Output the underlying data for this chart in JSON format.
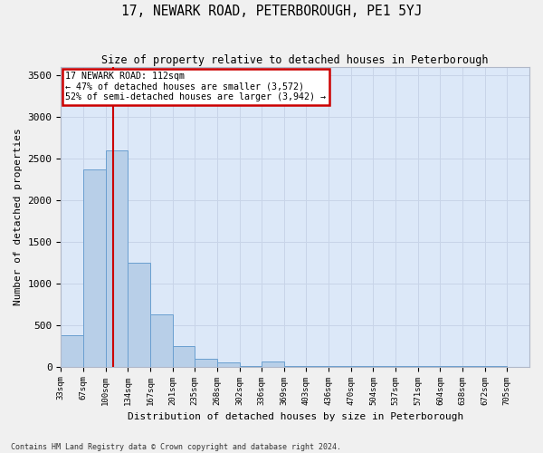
{
  "title": "17, NEWARK ROAD, PETERBOROUGH, PE1 5YJ",
  "subtitle": "Size of property relative to detached houses in Peterborough",
  "xlabel": "Distribution of detached houses by size in Peterborough",
  "ylabel": "Number of detached properties",
  "footnote1": "Contains HM Land Registry data © Crown copyright and database right 2024.",
  "bin_labels": [
    "33sqm",
    "67sqm",
    "100sqm",
    "134sqm",
    "167sqm",
    "201sqm",
    "235sqm",
    "268sqm",
    "302sqm",
    "336sqm",
    "369sqm",
    "403sqm",
    "436sqm",
    "470sqm",
    "504sqm",
    "537sqm",
    "571sqm",
    "604sqm",
    "638sqm",
    "672sqm",
    "705sqm"
  ],
  "bar_values": [
    375,
    2375,
    2600,
    1250,
    625,
    250,
    100,
    50,
    5,
    60,
    5,
    5,
    5,
    5,
    5,
    5,
    5,
    5,
    5,
    5
  ],
  "bar_color": "#b8cfe8",
  "bar_edge_color": "#6a9fd0",
  "annotation_text_line1": "17 NEWARK ROAD: 112sqm",
  "annotation_text_line2": "← 47% of detached houses are smaller (3,572)",
  "annotation_text_line3": "52% of semi-detached houses are larger (3,942) →",
  "annotation_box_color": "#ffffff",
  "annotation_box_edge_color": "#cc0000",
  "vline_color": "#cc0000",
  "ylim": [
    0,
    3600
  ],
  "yticks": [
    0,
    500,
    1000,
    1500,
    2000,
    2500,
    3000,
    3500
  ],
  "grid_color": "#c8d4e8",
  "background_color": "#dce8f8",
  "fig_background": "#f0f0f0"
}
